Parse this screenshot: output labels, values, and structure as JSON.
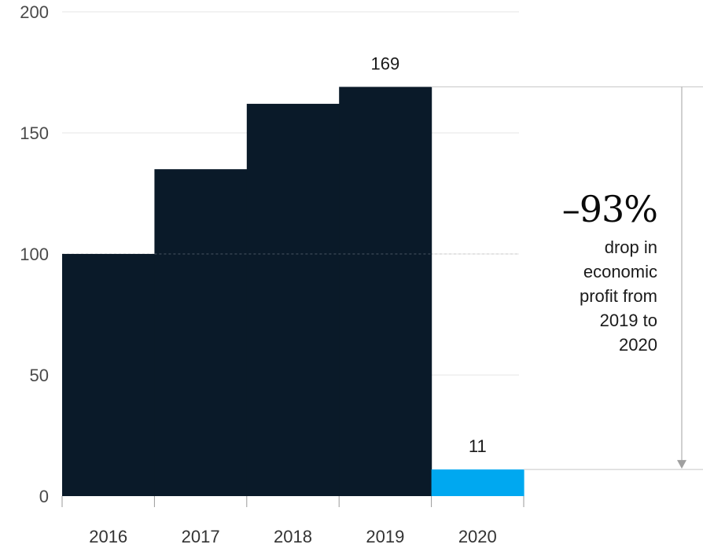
{
  "chart_data": {
    "type": "bar",
    "categories": [
      "2016",
      "2017",
      "2018",
      "2019",
      "2020"
    ],
    "values": [
      100,
      135,
      162,
      169,
      11
    ],
    "yticks": [
      "0",
      "50",
      "100",
      "150",
      "200"
    ],
    "ylim": [
      0,
      200
    ],
    "grid": true,
    "data_labels": [
      {
        "category": "2019",
        "text": "169"
      },
      {
        "category": "2020",
        "text": "11"
      }
    ],
    "annotation": {
      "headline": "–93%",
      "lines": [
        "drop in",
        "economic",
        "profit from",
        "2019 to",
        "2020"
      ]
    },
    "colors": {
      "bars": "#0a1a29",
      "highlight": "#00a8f0",
      "grid": "#e6e6e6",
      "reference": "#c8c8c8"
    }
  }
}
